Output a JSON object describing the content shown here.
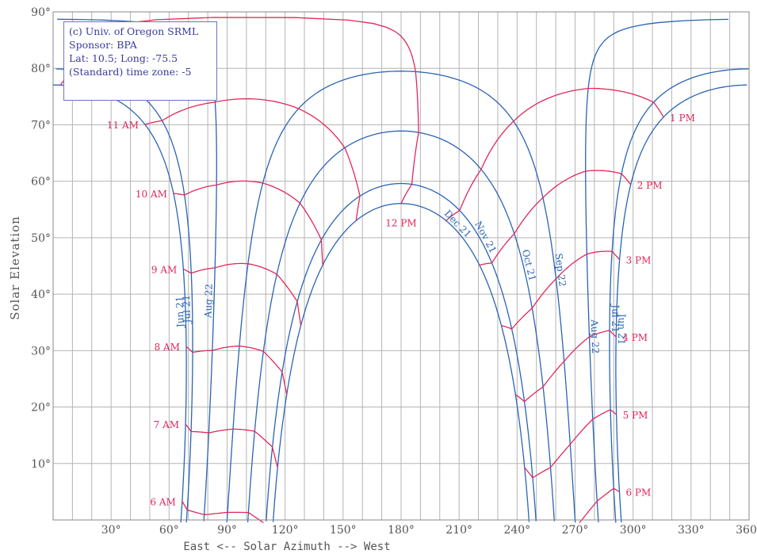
{
  "chart_data": {
    "type": "line",
    "title": "",
    "xlabel": "East <-- Solar Azimuth --> West",
    "ylabel": "Solar Elevation",
    "xlim": [
      0,
      360
    ],
    "ylim": [
      0,
      90
    ],
    "x_ticks": [
      {
        "value": 30,
        "label": "30°"
      },
      {
        "value": 60,
        "label": "60°"
      },
      {
        "value": 90,
        "label": "90°"
      },
      {
        "value": 120,
        "label": "120°"
      },
      {
        "value": 150,
        "label": "150°"
      },
      {
        "value": 180,
        "label": "180°"
      },
      {
        "value": 210,
        "label": "210°"
      },
      {
        "value": 240,
        "label": "240°"
      },
      {
        "value": 270,
        "label": "270°"
      },
      {
        "value": 300,
        "label": "300°"
      },
      {
        "value": 330,
        "label": "330°"
      },
      {
        "value": 360,
        "label": "360°"
      }
    ],
    "y_ticks": [
      {
        "value": 10,
        "label": "10°"
      },
      {
        "value": 20,
        "label": "20°"
      },
      {
        "value": 30,
        "label": "30°"
      },
      {
        "value": 40,
        "label": "40°"
      },
      {
        "value": 50,
        "label": "50°"
      },
      {
        "value": 60,
        "label": "60°"
      },
      {
        "value": 70,
        "label": "70°"
      },
      {
        "value": 80,
        "label": "80°"
      },
      {
        "value": 90,
        "label": "90°"
      }
    ],
    "grid": true,
    "grid_step": 10,
    "colors": {
      "date_lines": "#2a64b4",
      "hour_lines": "#e0285a",
      "grid": "#b4b4b4",
      "frame": "#888888"
    },
    "site_info": [
      "(c) Univ. of Oregon SRML",
      "Sponsor: BPA",
      "Lat: 10.5; Long: -75.5",
      "(Standard) time zone: -5"
    ],
    "latitude": 10.5,
    "longitude": -75.5,
    "time_zone": -5,
    "date_series": [
      {
        "label": "Jun 21",
        "declination": 23.44,
        "eot": -1.7
      },
      {
        "label": "Jul 21",
        "declination": 20.6,
        "eot": -6.3
      },
      {
        "label": "Aug 22",
        "declination": 11.8,
        "eot": -3.0
      },
      {
        "label": "Sep 22",
        "declination": 0.0,
        "eot": 7.5
      },
      {
        "label": "Oct 21",
        "declination": -10.6,
        "eot": 15.4
      },
      {
        "label": "Nov 21",
        "declination": -19.9,
        "eot": 14.0
      },
      {
        "label": "Dec 21",
        "declination": -23.44,
        "eot": 2.0
      }
    ],
    "hour_series": [
      {
        "label": "6 AM",
        "hour": 6
      },
      {
        "label": "7 AM",
        "hour": 7
      },
      {
        "label": "8 AM",
        "hour": 8
      },
      {
        "label": "9 AM",
        "hour": 9
      },
      {
        "label": "10 AM",
        "hour": 10
      },
      {
        "label": "11 AM",
        "hour": 11
      },
      {
        "label": "12 PM",
        "hour": 12
      },
      {
        "label": "1 PM",
        "hour": 13
      },
      {
        "label": "2 PM",
        "hour": 14
      },
      {
        "label": "3 PM",
        "hour": 15
      },
      {
        "label": "4 PM",
        "hour": 16
      },
      {
        "label": "5 PM",
        "hour": 17
      },
      {
        "label": "6 PM",
        "hour": 18
      }
    ]
  }
}
